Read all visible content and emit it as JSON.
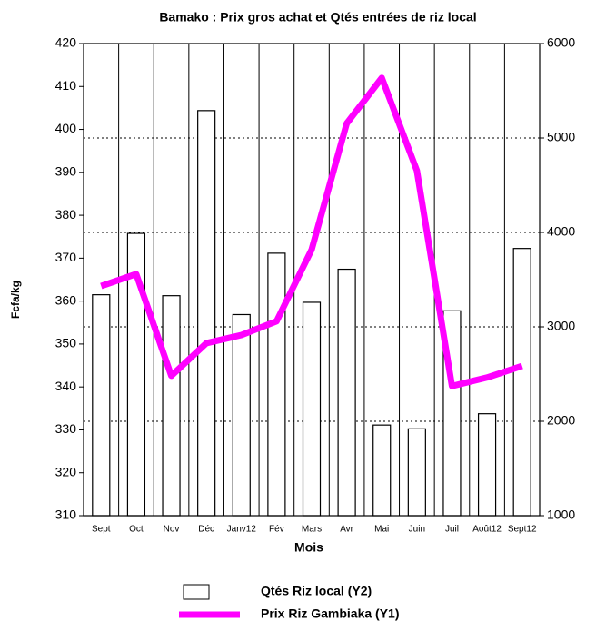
{
  "chart_data": {
    "type": "bar",
    "title": "Bamako : Prix  gros achat et Qtés entrées  de riz local",
    "y_label": "Fcfa/kg",
    "x_label": "Mois",
    "categories": [
      "Sept",
      "Oct",
      "Nov",
      "Déc",
      "Janv12",
      "Fév",
      "Mars",
      "Avr",
      "Mai",
      "Juin",
      "Juil",
      "Août12",
      "Sept12"
    ],
    "series": [
      {
        "name": "Qtés Riz local (Y2)",
        "type": "bar",
        "axis": "y2",
        "color": "#ffffff",
        "values": [
          3340,
          3990,
          3330,
          5290,
          3130,
          3780,
          3260,
          3610,
          1960,
          1920,
          3170,
          2080,
          3830
        ]
      },
      {
        "name": "Prix Riz Gambiaka (Y1)",
        "type": "line",
        "color": "#ff00ff",
        "values": [
          363.5,
          366.3,
          342.6,
          350.2,
          352.1,
          355.3,
          372,
          401.4,
          412,
          390.4,
          340.2,
          342.2,
          344.9
        ]
      }
    ],
    "ylim": [
      310,
      420
    ],
    "yticks": [
      310,
      320,
      330,
      340,
      350,
      360,
      370,
      380,
      390,
      400,
      410,
      420
    ],
    "y2lim": [
      1000,
      6000
    ],
    "y2ticks": [
      1000,
      2000,
      3000,
      4000,
      5000,
      6000
    ],
    "y2grid": true
  }
}
